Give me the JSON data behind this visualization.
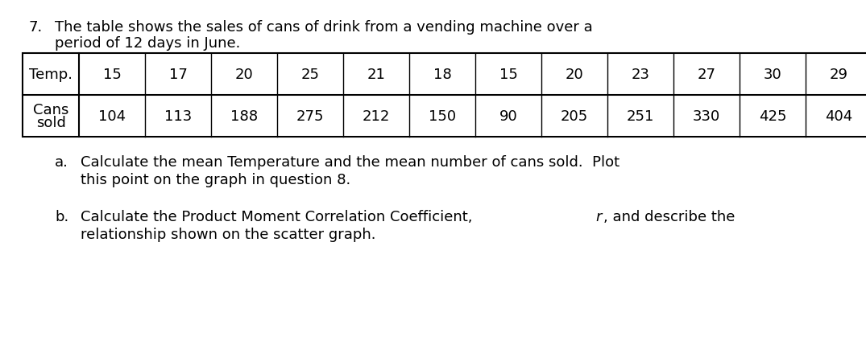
{
  "question_number": "7.",
  "question_line1": "The table shows the sales of cans of drink from a vending machine over a",
  "question_line2": "period of 12 days in June.",
  "row1_header": "Temp.",
  "row1_values": [
    15,
    17,
    20,
    25,
    21,
    18,
    15,
    20,
    23,
    27,
    30,
    29
  ],
  "row2_header_line1": "Cans",
  "row2_header_line2": "sold",
  "row2_values": [
    104,
    113,
    188,
    275,
    212,
    150,
    90,
    205,
    251,
    330,
    425,
    404
  ],
  "part_a_label": "a.",
  "part_a_line1": "Calculate the mean Temperature and the mean number of cans sold.  Plot",
  "part_a_line2": "this point on the graph in question 8.",
  "part_b_label": "b.",
  "part_b_before_r": "Calculate the Product Moment Correlation Coefficient, ",
  "part_b_r": "r",
  "part_b_after_r": ", and describe the",
  "part_b_line2": "relationship shown on the scatter graph.",
  "background_color": "#ffffff",
  "text_color": "#000000",
  "font_size": 13.0,
  "table_font_size": 13.0
}
